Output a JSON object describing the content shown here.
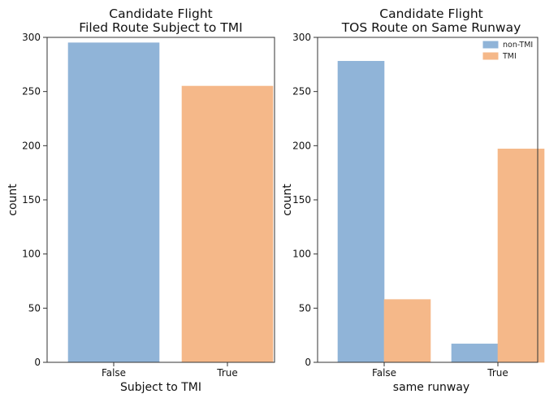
{
  "chart_data": [
    {
      "type": "bar",
      "title": "Candidate Flight\nFiled Route Subject to TMI",
      "xlabel": "Subject to TMI",
      "ylabel": "count",
      "categories": [
        "False",
        "True"
      ],
      "values": [
        295,
        255
      ],
      "bar_colors": [
        "#90b4d8",
        "#f5b889"
      ],
      "ylim": [
        0,
        300
      ],
      "yticks": [
        0,
        50,
        100,
        150,
        200,
        250,
        300
      ],
      "grid": false,
      "legend": null
    },
    {
      "type": "bar",
      "title": "Candidate Flight\nTOS Route on Same Runway",
      "xlabel": "same runway",
      "ylabel": "count",
      "categories": [
        "False",
        "True"
      ],
      "series": [
        {
          "name": "non-TMI",
          "values": [
            278,
            17
          ],
          "color": "#90b4d8"
        },
        {
          "name": "TMI",
          "values": [
            58,
            197
          ],
          "color": "#f5b889"
        }
      ],
      "ylim": [
        0,
        300
      ],
      "yticks": [
        0,
        50,
        100,
        150,
        200,
        250,
        300
      ],
      "grid": false,
      "legend": "top-right"
    }
  ]
}
